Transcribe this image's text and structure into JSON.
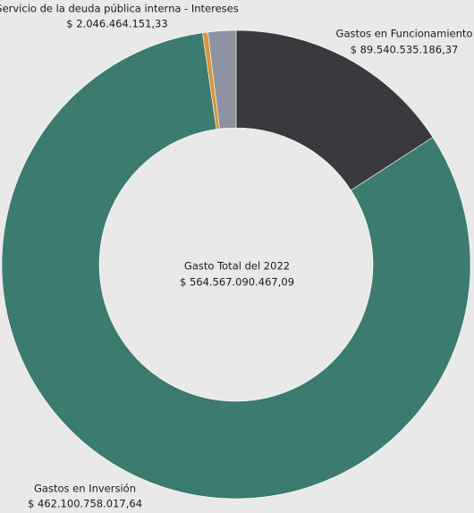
{
  "chart_data": {
    "type": "donut",
    "categories": [
      "Gastos en Funcionamiento",
      "Gastos en Inversión",
      "Servicio de la deuda pública interna - Intereses",
      null
    ],
    "values": [
      89540535186.37,
      462100758017.64,
      2046464151.33,
      10879333111.75
    ],
    "value_labels": [
      "$ 89.540.535.186,37",
      "$ 462.100.758.017,64",
      "$ 2.046.464.151,33",
      null
    ],
    "colors": [
      "#3a393e",
      "#3c7b6f",
      "#d6963a",
      "#8d93a0"
    ],
    "center_title": "Gasto Total del 2022",
    "center_value": "$ 564.567.090.467,09"
  }
}
